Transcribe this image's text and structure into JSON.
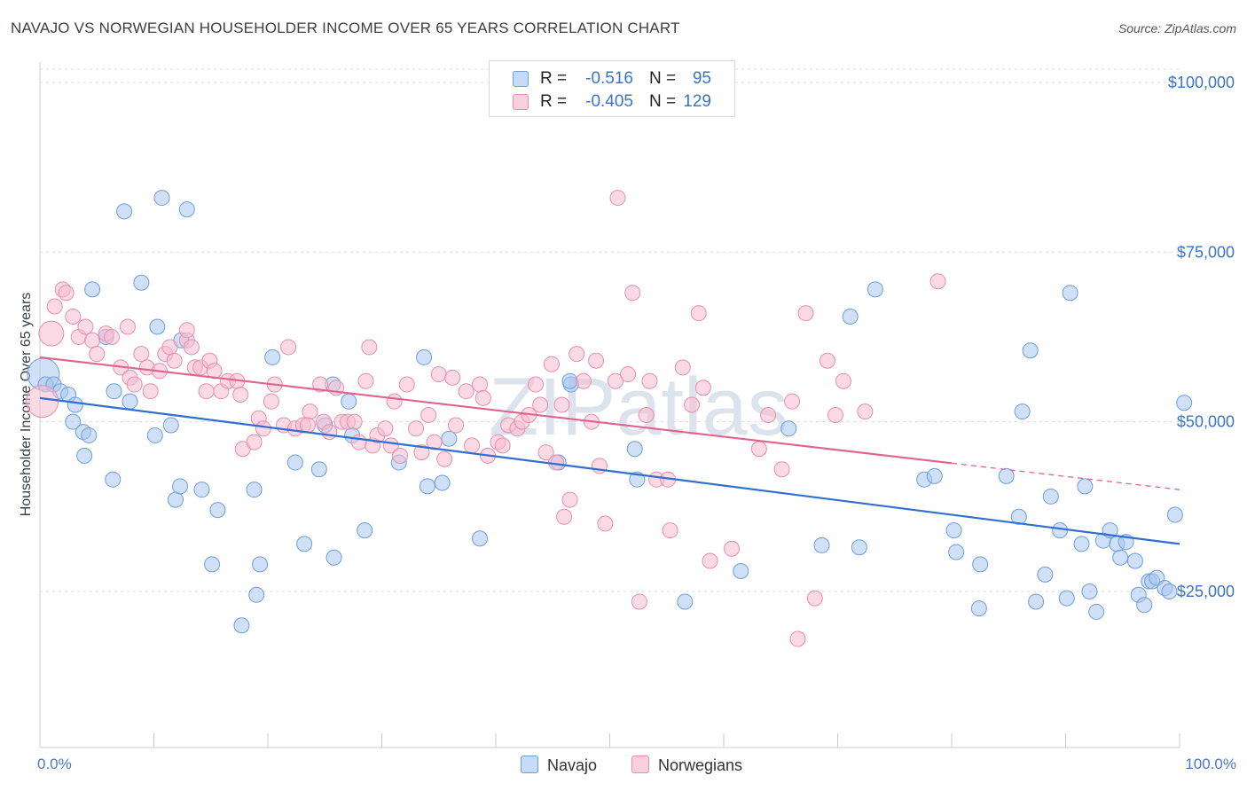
{
  "title": "NAVAJO VS NORWEGIAN HOUSEHOLDER INCOME OVER 65 YEARS CORRELATION CHART",
  "source": "Source: ZipAtlas.com",
  "watermark": "ZIPatlas",
  "legend_top": {
    "rows": [
      {
        "r_label": "R =",
        "r_value": "-0.516",
        "n_label": "N =",
        "n_value": "95",
        "color": "#8fb5e8"
      },
      {
        "r_label": "R =",
        "r_value": "-0.405",
        "n_label": "N =",
        "n_value": "129",
        "color": "#f0a7bf"
      }
    ]
  },
  "legend_bottom": [
    {
      "label": "Navajo",
      "color": "#8fb5e8"
    },
    {
      "label": "Norwegians",
      "color": "#f0a7bf"
    }
  ],
  "colors": {
    "navajo_fill": "#a9c7f0",
    "navajo_stroke": "#6d9ee0",
    "navajo_line": "#2f6fd1",
    "norwegian_fill": "#f7bccf",
    "norwegian_stroke": "#e98ead",
    "norwegian_line": "#e0628f",
    "value_text": "#3a73c9"
  },
  "chart_data": {
    "type": "scatter",
    "xlabel": "",
    "ylabel": "Householder Income Over 65 years",
    "x_tick_labels": [
      "0.0%",
      "100.0%"
    ],
    "y_tick_labels": [
      "$25,000",
      "$50,000",
      "$75,000",
      "$100,000"
    ],
    "y_ticks": [
      25000,
      50000,
      75000,
      100000
    ],
    "xlim": [
      0,
      100
    ],
    "ylim": [
      2000,
      103000
    ],
    "grid": true,
    "series": [
      {
        "name": "Navajo",
        "trend": {
          "x": [
            0,
            100
          ],
          "y": [
            53500,
            32000
          ],
          "dashed_from": null
        },
        "points": [
          [
            0.3,
            57,
            3
          ],
          [
            0.5,
            55.5,
            1
          ],
          [
            1.2,
            55.5,
            1
          ],
          [
            1.8,
            54.5,
            1
          ],
          [
            2.5,
            54,
            1
          ],
          [
            3.1,
            52.5,
            1
          ],
          [
            2.9,
            50,
            1
          ],
          [
            3.8,
            48.5,
            1
          ],
          [
            4.3,
            48,
            1
          ],
          [
            3.9,
            45,
            1
          ],
          [
            4.6,
            69.5,
            1
          ],
          [
            5.8,
            62.5,
            1
          ],
          [
            6.5,
            54.5,
            1
          ],
          [
            7.9,
            53,
            1
          ],
          [
            6.4,
            41.5,
            1
          ],
          [
            7.4,
            81,
            1
          ],
          [
            8.9,
            70.5,
            1
          ],
          [
            10.3,
            64,
            1
          ],
          [
            10.1,
            48,
            1
          ],
          [
            11.5,
            49.5,
            1
          ],
          [
            10.7,
            83,
            1
          ],
          [
            12.9,
            81.3,
            1
          ],
          [
            12.4,
            62,
            1
          ],
          [
            11.9,
            38.5,
            1
          ],
          [
            12.3,
            40.5,
            1
          ],
          [
            14.2,
            40,
            1
          ],
          [
            15.6,
            37,
            1
          ],
          [
            15.1,
            29,
            1
          ],
          [
            18.8,
            40,
            1
          ],
          [
            19.3,
            29,
            1
          ],
          [
            19.0,
            24.5,
            1
          ],
          [
            17.7,
            20,
            1
          ],
          [
            20.4,
            59.5,
            1
          ],
          [
            22.4,
            44,
            1
          ],
          [
            23.2,
            32,
            1
          ],
          [
            24.5,
            43,
            1
          ],
          [
            25.0,
            49.5,
            1
          ],
          [
            25.7,
            55.5,
            1
          ],
          [
            25.8,
            30,
            1
          ],
          [
            27.1,
            53,
            1
          ],
          [
            27.4,
            48,
            1
          ],
          [
            28.5,
            34,
            1
          ],
          [
            31.5,
            44,
            1
          ],
          [
            33.7,
            59.5,
            1
          ],
          [
            34.0,
            40.5,
            1
          ],
          [
            35.3,
            41,
            1
          ],
          [
            35.9,
            47.5,
            1
          ],
          [
            38.6,
            32.8,
            1
          ],
          [
            45.5,
            44,
            1
          ],
          [
            46.6,
            55.5,
            1
          ],
          [
            46.5,
            56,
            1
          ],
          [
            52.2,
            46,
            1
          ],
          [
            52.4,
            41.5,
            1
          ],
          [
            56.6,
            23.5,
            1
          ],
          [
            61.5,
            28,
            1
          ],
          [
            65.7,
            49,
            1
          ],
          [
            68.6,
            31.8,
            1
          ],
          [
            71.1,
            65.5,
            1
          ],
          [
            71.9,
            31.5,
            1
          ],
          [
            73.3,
            69.5,
            1
          ],
          [
            77.6,
            41.5,
            1
          ],
          [
            78.5,
            42,
            1
          ],
          [
            80.2,
            34,
            1
          ],
          [
            80.4,
            30.8,
            1
          ],
          [
            82.4,
            22.5,
            1
          ],
          [
            82.5,
            29,
            1
          ],
          [
            84.8,
            42,
            1
          ],
          [
            85.9,
            36,
            1
          ],
          [
            86.9,
            60.5,
            1
          ],
          [
            86.2,
            51.5,
            1
          ],
          [
            87.4,
            23.5,
            1
          ],
          [
            88.2,
            27.5,
            1
          ],
          [
            88.7,
            39,
            1
          ],
          [
            89.5,
            34,
            1
          ],
          [
            90.1,
            24,
            1
          ],
          [
            90.4,
            69,
            1
          ],
          [
            91.4,
            32,
            1
          ],
          [
            91.7,
            40.5,
            1
          ],
          [
            92.1,
            25,
            1
          ],
          [
            92.7,
            22,
            1
          ],
          [
            93.3,
            32.5,
            1
          ],
          [
            93.9,
            34,
            1
          ],
          [
            94.5,
            32,
            1
          ],
          [
            94.8,
            30,
            1
          ],
          [
            95.3,
            32.3,
            1
          ],
          [
            96.1,
            29.5,
            1
          ],
          [
            96.4,
            24.5,
            1
          ],
          [
            96.9,
            23,
            1
          ],
          [
            97.3,
            26.5,
            1
          ],
          [
            97.6,
            26.5,
            1
          ],
          [
            98.0,
            27,
            1
          ],
          [
            98.7,
            25.5,
            1
          ],
          [
            99.1,
            25,
            1
          ],
          [
            99.6,
            36.3,
            1
          ],
          [
            100.4,
            52.8,
            1
          ]
        ]
      },
      {
        "name": "Norwegians",
        "trend": {
          "x": [
            0,
            100
          ],
          "y": [
            59500,
            40000
          ],
          "dashed_from": 80
        },
        "points": [
          [
            0.2,
            53,
            3
          ],
          [
            1.0,
            63,
            2
          ],
          [
            1.3,
            67,
            1
          ],
          [
            2.0,
            69.5,
            1
          ],
          [
            2.3,
            69,
            1
          ],
          [
            2.9,
            65.5,
            1
          ],
          [
            3.4,
            62.5,
            1
          ],
          [
            4.0,
            64,
            1
          ],
          [
            4.6,
            62,
            1
          ],
          [
            5.0,
            60,
            1
          ],
          [
            5.8,
            63,
            1
          ],
          [
            6.3,
            62.5,
            1
          ],
          [
            7.1,
            58,
            1
          ],
          [
            7.7,
            64,
            1
          ],
          [
            7.9,
            56.5,
            1
          ],
          [
            8.3,
            55.5,
            1
          ],
          [
            8.9,
            60,
            1
          ],
          [
            9.4,
            58,
            1
          ],
          [
            9.7,
            54.5,
            1
          ],
          [
            10.5,
            57.5,
            1
          ],
          [
            11.0,
            60,
            1
          ],
          [
            11.4,
            61,
            1
          ],
          [
            11.8,
            59,
            1
          ],
          [
            12.9,
            62,
            1
          ],
          [
            12.9,
            63.5,
            1
          ],
          [
            13.3,
            61,
            1
          ],
          [
            13.6,
            58,
            1
          ],
          [
            14.1,
            58,
            1
          ],
          [
            14.6,
            54.5,
            1
          ],
          [
            14.9,
            59,
            1
          ],
          [
            15.3,
            57.5,
            1
          ],
          [
            15.9,
            54.5,
            1
          ],
          [
            16.5,
            56,
            1
          ],
          [
            17.3,
            56,
            1
          ],
          [
            17.6,
            54,
            1
          ],
          [
            17.8,
            46,
            1
          ],
          [
            18.8,
            47,
            1
          ],
          [
            19.2,
            50.5,
            1
          ],
          [
            19.6,
            49,
            1
          ],
          [
            20.3,
            53,
            1
          ],
          [
            20.6,
            55.5,
            1
          ],
          [
            21.4,
            49.5,
            1
          ],
          [
            21.8,
            61,
            1
          ],
          [
            22.4,
            49,
            1
          ],
          [
            23.1,
            49.5,
            1
          ],
          [
            23.7,
            51.5,
            1
          ],
          [
            23.5,
            49.5,
            1
          ],
          [
            24.6,
            55.5,
            1
          ],
          [
            24.9,
            50,
            1
          ],
          [
            25.4,
            48.5,
            1
          ],
          [
            26.0,
            55,
            1
          ],
          [
            26.5,
            50,
            1
          ],
          [
            27.0,
            50,
            1
          ],
          [
            27.6,
            50,
            1
          ],
          [
            28.0,
            47,
            1
          ],
          [
            28.6,
            56,
            1
          ],
          [
            28.9,
            61,
            1
          ],
          [
            29.2,
            46.5,
            1
          ],
          [
            29.6,
            48,
            1
          ],
          [
            30.3,
            49,
            1
          ],
          [
            30.8,
            46.5,
            1
          ],
          [
            31.1,
            53,
            1
          ],
          [
            31.6,
            45,
            1
          ],
          [
            32.2,
            55.5,
            1
          ],
          [
            33.0,
            49,
            1
          ],
          [
            33.5,
            45.5,
            1
          ],
          [
            34.1,
            51,
            1
          ],
          [
            34.6,
            47,
            1
          ],
          [
            35.0,
            57,
            1
          ],
          [
            35.5,
            44.5,
            1
          ],
          [
            36.2,
            56.5,
            1
          ],
          [
            36.5,
            49.5,
            1
          ],
          [
            37.4,
            54.5,
            1
          ],
          [
            37.9,
            46.5,
            1
          ],
          [
            38.6,
            55.5,
            1
          ],
          [
            38.9,
            53.5,
            1
          ],
          [
            39.3,
            45,
            1
          ],
          [
            40.2,
            47,
            1
          ],
          [
            40.6,
            46.5,
            1
          ],
          [
            41.1,
            49.5,
            1
          ],
          [
            41.9,
            49,
            1
          ],
          [
            42.3,
            50,
            1
          ],
          [
            42.9,
            51,
            1
          ],
          [
            43.5,
            55.5,
            1
          ],
          [
            43.9,
            52.5,
            1
          ],
          [
            44.4,
            45.5,
            1
          ],
          [
            44.9,
            58.5,
            1
          ],
          [
            45.3,
            44,
            1
          ],
          [
            45.8,
            52.5,
            1
          ],
          [
            46.5,
            38.5,
            1
          ],
          [
            46.0,
            36,
            1
          ],
          [
            47.1,
            60,
            1
          ],
          [
            47.7,
            56,
            1
          ],
          [
            48.4,
            50,
            1
          ],
          [
            48.8,
            59,
            1
          ],
          [
            49.1,
            43.5,
            1
          ],
          [
            49.6,
            35,
            1
          ],
          [
            50.5,
            56,
            1
          ],
          [
            50.7,
            83,
            1
          ],
          [
            51.6,
            57,
            1
          ],
          [
            52.0,
            69,
            1
          ],
          [
            53.2,
            51,
            1
          ],
          [
            53.5,
            56,
            1
          ],
          [
            52.6,
            23.5,
            1
          ],
          [
            54.1,
            41.5,
            1
          ],
          [
            55.1,
            41.5,
            1
          ],
          [
            55.3,
            34,
            1
          ],
          [
            56.4,
            58,
            1
          ],
          [
            57.2,
            52.5,
            1
          ],
          [
            57.8,
            66,
            1
          ],
          [
            58.2,
            55,
            1
          ],
          [
            58.8,
            29.5,
            1
          ],
          [
            60.7,
            31.3,
            1
          ],
          [
            63.9,
            51,
            1
          ],
          [
            63.1,
            46,
            1
          ],
          [
            65.1,
            43,
            1
          ],
          [
            66.0,
            53,
            1
          ],
          [
            67.2,
            66,
            1
          ],
          [
            66.5,
            18,
            1
          ],
          [
            68.0,
            24,
            1
          ],
          [
            69.1,
            59,
            1
          ],
          [
            70.5,
            56,
            1
          ],
          [
            69.8,
            51,
            1
          ],
          [
            72.4,
            51.5,
            1
          ],
          [
            78.8,
            70.7,
            1
          ]
        ]
      }
    ]
  }
}
